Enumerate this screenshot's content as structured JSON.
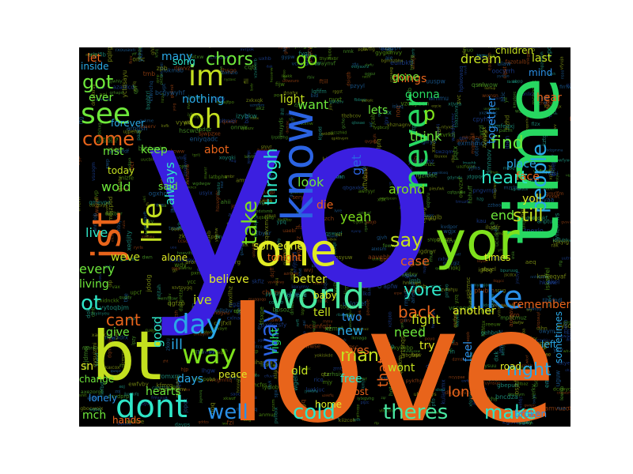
{
  "canvas_background": "#000000",
  "words": [
    {
      "text": "yo",
      "color": "#3b1fe0"
    },
    {
      "text": "love",
      "color": "#e8641b"
    },
    {
      "text": "time",
      "color": "#27d861"
    },
    {
      "text": "yor",
      "color": "#7ee11c"
    },
    {
      "text": "one",
      "color": "#e1ec24"
    },
    {
      "text": "bt",
      "color": "#c4e01f"
    },
    {
      "text": "world",
      "color": "#48e8a1"
    },
    {
      "text": "know",
      "color": "#2b63e2"
    },
    {
      "text": "jst",
      "color": "#e8641b"
    },
    {
      "text": "like",
      "color": "#2a8fe6"
    },
    {
      "text": "never",
      "color": "#27d861"
    },
    {
      "text": "dont",
      "color": "#2fe6c8"
    },
    {
      "text": "day",
      "color": "#2aa8e6"
    },
    {
      "text": "way",
      "color": "#7ee11c"
    },
    {
      "text": "im",
      "color": "#c4e01f"
    },
    {
      "text": "see",
      "color": "#6ee83b"
    },
    {
      "text": "oh",
      "color": "#c4e01f"
    },
    {
      "text": "come",
      "color": "#e8641b"
    },
    {
      "text": "got",
      "color": "#6ee83b"
    },
    {
      "text": "go",
      "color": "#7ee11c"
    },
    {
      "text": "life",
      "color": "#c4e01f"
    },
    {
      "text": "away",
      "color": "#2b63e2"
    },
    {
      "text": "well",
      "color": "#2a8fe6"
    },
    {
      "text": "cold",
      "color": "#2fe6c8"
    },
    {
      "text": "theres",
      "color": "#48e8a1"
    },
    {
      "text": "make",
      "color": "#2fe6c8"
    },
    {
      "text": "night",
      "color": "#2aa8e6"
    },
    {
      "text": "ot",
      "color": "#2fe6c8"
    },
    {
      "text": "say",
      "color": "#c4e01f"
    },
    {
      "text": "yore",
      "color": "#2fe6c8"
    },
    {
      "text": "take",
      "color": "#7ee11c"
    },
    {
      "text": "throgh",
      "color": "#2fe6c8"
    },
    {
      "text": "p",
      "color": "#7ee11c"
    },
    {
      "text": "find",
      "color": "#6ee83b"
    },
    {
      "text": "people",
      "color": "#2aa8e6"
    },
    {
      "text": "heart",
      "color": "#2fe6c8"
    },
    {
      "text": "still",
      "color": "#c4e01f"
    },
    {
      "text": "back",
      "color": "#e8641b"
    },
    {
      "text": "cant",
      "color": "#e8641b"
    },
    {
      "text": "live",
      "color": "#2fe6c8"
    },
    {
      "text": "ive",
      "color": "#c4e01f"
    },
    {
      "text": "man",
      "color": "#c4e01f"
    },
    {
      "text": "long",
      "color": "#e8641b"
    },
    {
      "text": "want",
      "color": "#6ee83b"
    },
    {
      "text": "think",
      "color": "#6ee83b"
    },
    {
      "text": "things",
      "color": "#e8641b"
    },
    {
      "text": "gone",
      "color": "#6ee83b"
    },
    {
      "text": "gonna",
      "color": "#27d861"
    },
    {
      "text": "look",
      "color": "#6ee83b"
    },
    {
      "text": "arond",
      "color": "#7ee11c"
    },
    {
      "text": "yeah",
      "color": "#7ee11c"
    },
    {
      "text": "end",
      "color": "#6ee83b"
    },
    {
      "text": "case",
      "color": "#e8641b"
    },
    {
      "text": "every",
      "color": "#6ee83b"
    },
    {
      "text": "living",
      "color": "#6ee83b"
    },
    {
      "text": "weve",
      "color": "#c4e01f"
    },
    {
      "text": "always",
      "color": "#2fe6c8"
    },
    {
      "text": "wold",
      "color": "#6ee83b"
    },
    {
      "text": "chors",
      "color": "#6ee83b"
    },
    {
      "text": "abot",
      "color": "#e8641b"
    },
    {
      "text": "nothing",
      "color": "#2aa8e6"
    },
    {
      "text": "ever",
      "color": "#6ee83b"
    },
    {
      "text": "mst",
      "color": "#6ee83b"
    },
    {
      "text": "keep",
      "color": "#6ee83b"
    },
    {
      "text": "let",
      "color": "#e8641b"
    },
    {
      "text": "many",
      "color": "#2aa8e6"
    },
    {
      "text": "dream",
      "color": "#c4e01f"
    },
    {
      "text": "last",
      "color": "#c4e01f"
    },
    {
      "text": "mind",
      "color": "#2a8fe6"
    },
    {
      "text": "hear",
      "color": "#e8641b"
    },
    {
      "text": "together",
      "color": "#2a8fe6"
    },
    {
      "text": "light",
      "color": "#c4e01f"
    },
    {
      "text": "lets",
      "color": "#6ee83b"
    },
    {
      "text": "get",
      "color": "#2b63e2"
    },
    {
      "text": "place",
      "color": "#2aa8e6"
    },
    {
      "text": "face",
      "color": "#e8641b"
    },
    {
      "text": "yoll",
      "color": "#e1ec24"
    },
    {
      "text": "believe",
      "color": "#e1ec24"
    },
    {
      "text": "better",
      "color": "#e1ec24"
    },
    {
      "text": "someone",
      "color": "#e1ec24"
    },
    {
      "text": "give",
      "color": "#6ee83b"
    },
    {
      "text": "good",
      "color": "#2fe6c8"
    },
    {
      "text": "ill",
      "color": "#2aa8e6"
    },
    {
      "text": "days",
      "color": "#2aa8e6"
    },
    {
      "text": "hearts",
      "color": "#6ee83b"
    },
    {
      "text": "tell",
      "color": "#c4e01f"
    },
    {
      "text": "need",
      "color": "#6ee83b"
    },
    {
      "text": "new",
      "color": "#2aa8e6"
    },
    {
      "text": "eyes",
      "color": "#e8641b"
    },
    {
      "text": "thats",
      "color": "#e8641b"
    },
    {
      "text": "fight",
      "color": "#c4e01f"
    },
    {
      "text": "try",
      "color": "#e1ec24"
    },
    {
      "text": "another",
      "color": "#e1ec24"
    },
    {
      "text": "two",
      "color": "#2a8fe6"
    },
    {
      "text": "wont",
      "color": "#c4e01f"
    },
    {
      "text": "free",
      "color": "#2fe6c8"
    },
    {
      "text": "old",
      "color": "#c4e01f"
    },
    {
      "text": "feel",
      "color": "#2a8fe6"
    },
    {
      "text": "tonight",
      "color": "#e8641b"
    },
    {
      "text": "times",
      "color": "#e1ec24"
    },
    {
      "text": "left",
      "color": "#2aa8e6"
    },
    {
      "text": "mch",
      "color": "#6ee83b"
    },
    {
      "text": "sn",
      "color": "#e1ec24"
    },
    {
      "text": "remember",
      "color": "#e8641b"
    },
    {
      "text": "right",
      "color": "#27d861"
    },
    {
      "text": "lost",
      "color": "#e8641b"
    },
    {
      "text": "die",
      "color": "#e8641b"
    },
    {
      "text": "forever",
      "color": "#2aa8e6"
    },
    {
      "text": "song",
      "color": "#2fe6c8"
    },
    {
      "text": "inside",
      "color": "#2aa8e6"
    },
    {
      "text": "said",
      "color": "#6ee83b"
    },
    {
      "text": "today",
      "color": "#c4e01f"
    },
    {
      "text": "alone",
      "color": "#e1ec24"
    },
    {
      "text": "baby",
      "color": "#e1ec24"
    },
    {
      "text": "sometimes",
      "color": "#2aa8e6"
    },
    {
      "text": "lonely",
      "color": "#2a8fe6"
    },
    {
      "text": "change",
      "color": "#6ee83b"
    },
    {
      "text": "home",
      "color": "#e1ec24"
    },
    {
      "text": "peace",
      "color": "#e1ec24"
    },
    {
      "text": "children",
      "color": "#c4e01f"
    },
    {
      "text": "road",
      "color": "#e1ec24"
    },
    {
      "text": "broken",
      "color": "#2a8fe6"
    },
    {
      "text": "hands",
      "color": "#e8641b"
    }
  ]
}
